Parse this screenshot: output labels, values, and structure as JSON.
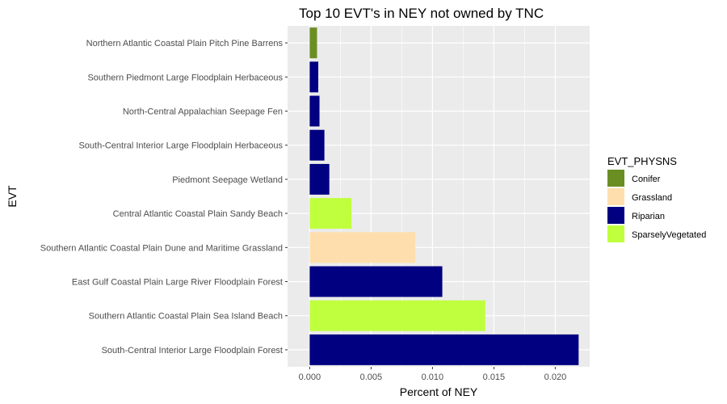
{
  "chart_data": {
    "type": "bar",
    "orientation": "horizontal",
    "title": "Top 10 EVT's in NEY not owned by TNC",
    "xlabel": "Percent of NEY",
    "ylabel": "EVT",
    "xlim": [
      -0.0018,
      0.0228
    ],
    "xticks": [
      0,
      0.005,
      0.01,
      0.015,
      0.02
    ],
    "xtick_labels": [
      "0.000",
      "0.005",
      "0.010",
      "0.015",
      "0.020"
    ],
    "grid": true,
    "legend_position": "right",
    "categories": [
      "Northern Atlantic Coastal Plain Pitch Pine Barrens",
      "Southern Piedmont Large Floodplain Herbaceous",
      "North-Central Appalachian Seepage Fen",
      "South-Central Interior Large Floodplain Herbaceous",
      "Piedmont Seepage Wetland",
      "Central Atlantic Coastal Plain Sandy Beach",
      "Southern Atlantic Coastal Plain Dune and Maritime Grassland",
      "East Gulf Coastal Plain Large River Floodplain Forest",
      "Southern Atlantic Coastal Plain Sea Island Beach",
      "South-Central Interior Large Floodplain Forest"
    ],
    "values": [
      0.0006,
      0.0007,
      0.0008,
      0.0012,
      0.0016,
      0.0034,
      0.0086,
      0.0108,
      0.0143,
      0.0219
    ],
    "groups": [
      "Conifer",
      "Riparian",
      "Riparian",
      "Riparian",
      "Riparian",
      "SparselyVegetated",
      "Grassland",
      "Riparian",
      "SparselyVegetated",
      "Riparian"
    ],
    "legend": {
      "title": "EVT_PHYSNS",
      "entries": [
        {
          "label": "Conifer",
          "color": "#6b8e23"
        },
        {
          "label": "Grassland",
          "color": "#ffdead"
        },
        {
          "label": "Riparian",
          "color": "#000080"
        },
        {
          "label": "SparselyVegetated",
          "color": "#c0ff3e"
        }
      ]
    },
    "panel_color": "#ebebeb",
    "grid_color": "#ffffff"
  }
}
